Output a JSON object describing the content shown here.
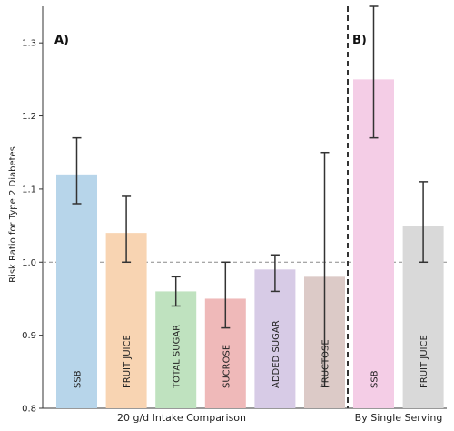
{
  "chart_data": {
    "type": "bar",
    "ylabel": "Risk Ratio for Type 2 Diabetes",
    "ylim": [
      0.8,
      1.35
    ],
    "yticks": [
      "0.8",
      "0.9",
      "1.0",
      "1.1",
      "1.2",
      "1.3"
    ],
    "reference_line": 1.0,
    "panels": [
      {
        "label": "A)",
        "group_label": "20 g/d Intake Comparison",
        "bars": [
          {
            "name": "SSB",
            "value": 1.12,
            "ci_low": 1.08,
            "ci_high": 1.17,
            "color": "#b7d5ea"
          },
          {
            "name": "FRUIT JUICE",
            "value": 1.04,
            "ci_low": 1.0,
            "ci_high": 1.09,
            "color": "#f8d4b2"
          },
          {
            "name": "TOTAL SUGAR",
            "value": 0.96,
            "ci_low": 0.94,
            "ci_high": 0.98,
            "color": "#bfe2bf"
          },
          {
            "name": "SUCROSE",
            "value": 0.95,
            "ci_low": 0.91,
            "ci_high": 1.0,
            "color": "#efb9b9"
          },
          {
            "name": "ADDED SUGAR",
            "value": 0.99,
            "ci_low": 0.96,
            "ci_high": 1.01,
            "color": "#d7cbe6"
          },
          {
            "name": "FRUCTOSE",
            "value": 0.98,
            "ci_low": 0.83,
            "ci_high": 1.15,
            "color": "#dccac7"
          }
        ]
      },
      {
        "label": "B)",
        "group_label": "By Single Serving",
        "bars": [
          {
            "name": "SSB",
            "value": 1.25,
            "ci_low": 1.17,
            "ci_high": 1.35,
            "color": "#f4cde6"
          },
          {
            "name": "FRUIT JUICE",
            "value": 1.05,
            "ci_low": 1.0,
            "ci_high": 1.11,
            "color": "#d9d9d9"
          }
        ]
      }
    ],
    "grid": false
  }
}
